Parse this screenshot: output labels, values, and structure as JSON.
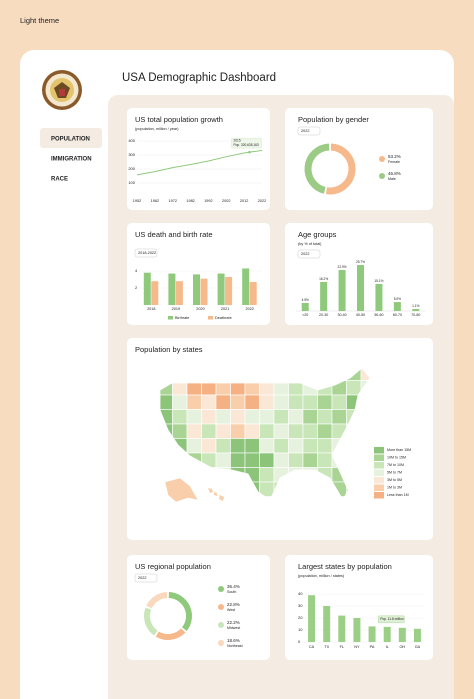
{
  "header": {
    "theme_label": "Light theme",
    "title": "USA Demographic Dashboard"
  },
  "nav": [
    "POPULATION",
    "IMMIGRATION",
    "RACE"
  ],
  "chart_data": [
    {
      "type": "line",
      "title": "US total population growth",
      "subtitle": "(population, million / year)",
      "x": [
        1952,
        1962,
        1972,
        1982,
        1992,
        2002,
        2012,
        2022
      ],
      "series": [
        {
          "name": "Population",
          "color": "#8fc97c",
          "values": [
            158,
            181,
            210,
            232,
            257,
            288,
            314,
            333
          ]
        }
      ],
      "xlim": [
        1952,
        2022
      ],
      "xticks": [
        1952,
        1962,
        1972,
        1982,
        1992,
        2002,
        2012,
        2022
      ],
      "ylim": [
        0,
        400
      ],
      "yticks": [
        100,
        200,
        300,
        400
      ],
      "grid": true,
      "annotation": {
        "x": 2015,
        "value": 320.6,
        "label": "2015",
        "text": "Pop. 320,635,163"
      }
    },
    {
      "type": "donut",
      "title": "Population by gender",
      "filter": "2022",
      "categories": [
        "Female",
        "Male"
      ],
      "values": [
        53.2,
        46.8
      ],
      "value_labels": [
        "53.2%",
        "46.8%"
      ],
      "colors": [
        "#f6b98b",
        "#9ccb86"
      ]
    },
    {
      "type": "bar",
      "title": "US death and birth rate",
      "filter": "2018-2022",
      "categories": [
        "2018",
        "2019",
        "2020",
        "2021",
        "2022"
      ],
      "series": [
        {
          "name": "Birthrate",
          "color": "#8fc97c",
          "values": [
            3.8,
            3.7,
            3.6,
            3.7,
            4.3
          ]
        },
        {
          "name": "Deathrate",
          "color": "#f6b98b",
          "values": [
            2.8,
            2.8,
            3.1,
            3.3,
            2.7
          ]
        }
      ],
      "ylim": [
        0,
        5
      ],
      "yticks": [
        2,
        4
      ]
    },
    {
      "type": "bar",
      "title": "Age groups",
      "subtitle": "(by % of total)",
      "filter": "2022",
      "categories": [
        "<20",
        "20-30",
        "30-40",
        "40-50",
        "50-60",
        "60-70",
        "70-80"
      ],
      "values": [
        4.5,
        16.2,
        22.9,
        25.7,
        15.1,
        5.0,
        1.1
      ],
      "value_labels": [
        "4.5%",
        "16.2%",
        "22.9%",
        "25.7%",
        "15.1%",
        "5.0%",
        "1.1%"
      ],
      "color": "#8fc97c"
    },
    {
      "type": "map",
      "title": "Population by states",
      "legend": [
        {
          "label": "More than 15M",
          "color": "#8cc47a"
        },
        {
          "label": "10M to 15M",
          "color": "#a9d494"
        },
        {
          "label": "7M to 10M",
          "color": "#c9e6b8"
        },
        {
          "label": "5M to 7M",
          "color": "#e6f2dd"
        },
        {
          "label": "3M to 5M",
          "color": "#fbe7d6"
        },
        {
          "label": "1M to 3M",
          "color": "#f8cfaa"
        },
        {
          "label": "Less than 1M",
          "color": "#f5b183"
        }
      ]
    },
    {
      "type": "donut",
      "title": "US regional population",
      "filter": "2022",
      "categories": [
        "South",
        "West",
        "Midwest",
        "Northeast"
      ],
      "values": [
        36.4,
        22.8,
        22.2,
        18.6
      ],
      "value_labels": [
        "36.4%",
        "22.8%",
        "22.2%",
        "18.6%"
      ],
      "colors": [
        "#8fc97c",
        "#f6b98b",
        "#c9e6b8",
        "#f9d8bd"
      ]
    },
    {
      "type": "bar",
      "title": "Largest states by population",
      "subtitle": "(population, million / states)",
      "categories": [
        "CA",
        "TX",
        "FL",
        "NY",
        "PA",
        "IL",
        "OH",
        "GA"
      ],
      "values": [
        39,
        30,
        22,
        20,
        13,
        12.6,
        11.8,
        11
      ],
      "color": "#9ccf86",
      "ylim": [
        0,
        40
      ],
      "yticks": [
        0,
        10,
        20,
        30,
        40
      ],
      "annotation": {
        "index": 6,
        "text": "Pop. 11.8 million"
      }
    }
  ]
}
